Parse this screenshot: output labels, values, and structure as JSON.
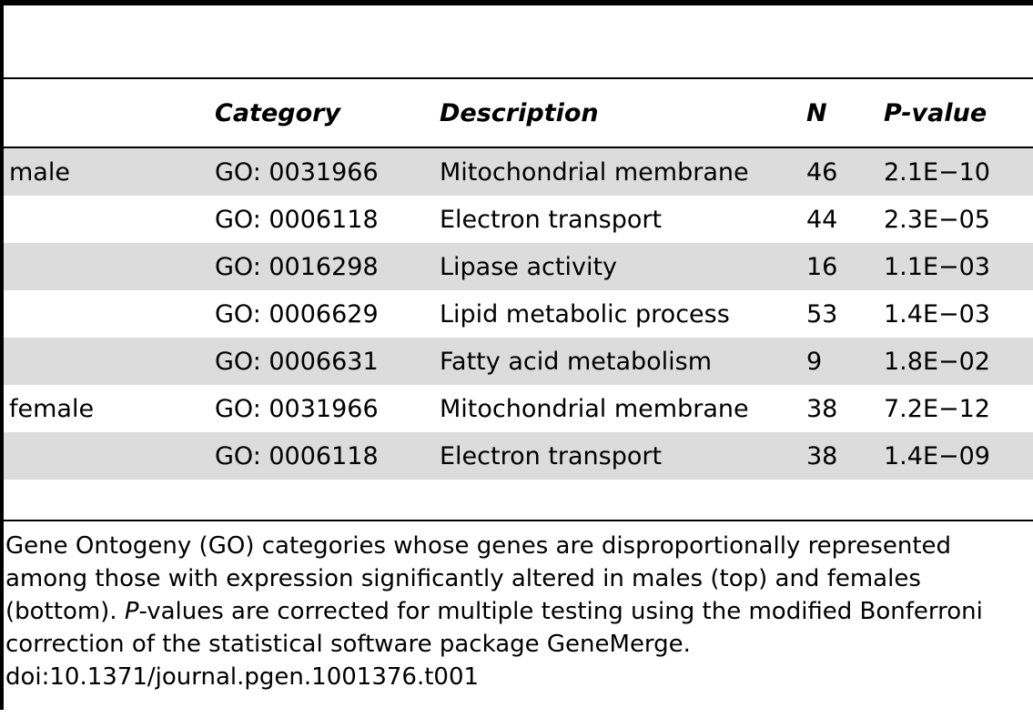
{
  "table": {
    "headers": [
      "",
      "Category",
      "Description",
      "N",
      "P-value"
    ],
    "rows": [
      {
        "group": "male",
        "category": "GO: 0031966",
        "description": "Mitochondrial membrane",
        "n": "46",
        "p": "2.1E−10"
      },
      {
        "group": "",
        "category": "GO: 0006118",
        "description": "Electron transport",
        "n": "44",
        "p": "2.3E−05"
      },
      {
        "group": "",
        "category": "GO: 0016298",
        "description": "Lipase activity",
        "n": "16",
        "p": "1.1E−03"
      },
      {
        "group": "",
        "category": "GO: 0006629",
        "description": "Lipid metabolic process",
        "n": "53",
        "p": "1.4E−03"
      },
      {
        "group": "",
        "category": "GO: 0006631",
        "description": "Fatty acid metabolism",
        "n": "9",
        "p": "1.8E−02"
      },
      {
        "group": "female",
        "category": "GO: 0031966",
        "description": "Mitochondrial membrane",
        "n": "38",
        "p": "7.2E−12"
      },
      {
        "group": "",
        "category": "GO: 0006118",
        "description": "Electron transport",
        "n": "38",
        "p": "1.4E−09"
      }
    ]
  },
  "caption": {
    "part1": "Gene Ontogeny (GO) categories whose genes are disproportionally represented among those with expression significantly altered in males (top) and females (bottom). ",
    "italic": "P",
    "part2": "-values are corrected for multiple testing using the modified Bonferroni correction of the statistical software package GeneMerge.",
    "doi": "doi:10.1371/journal.pgen.1001376.t001"
  },
  "colors": {
    "row_shade": "#dcdcdc",
    "rule": "#000000"
  }
}
